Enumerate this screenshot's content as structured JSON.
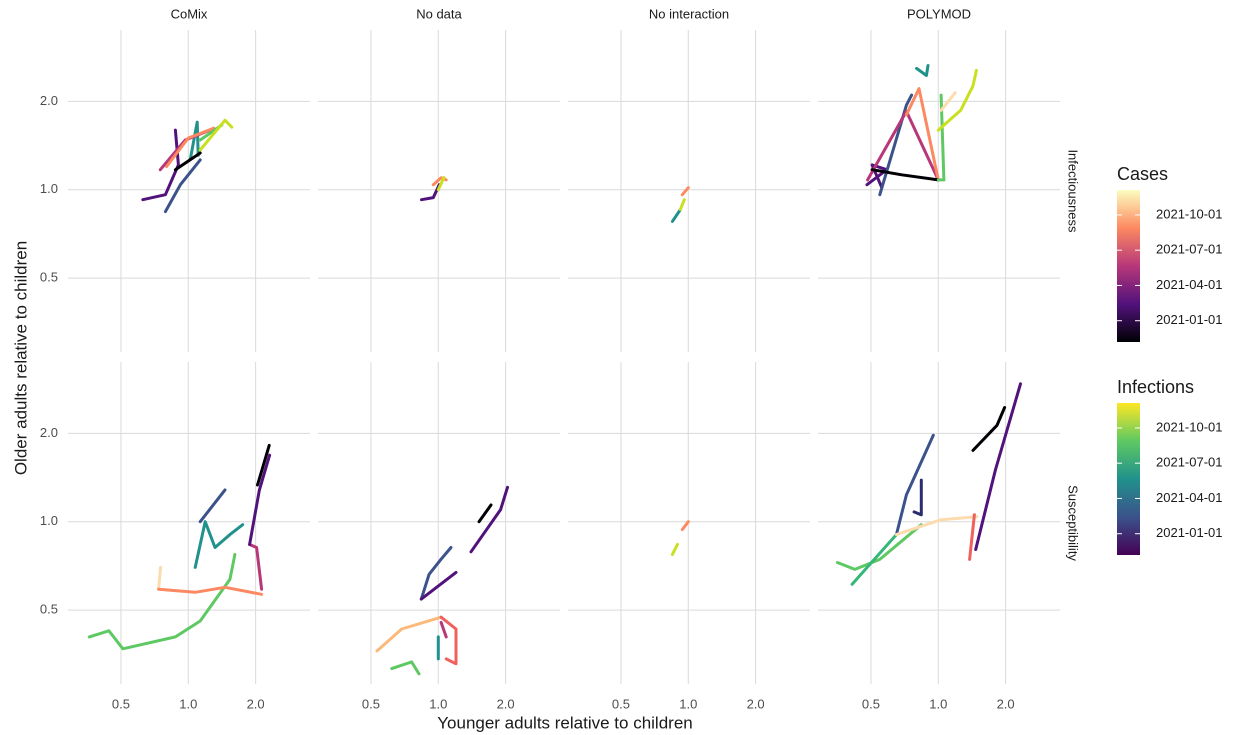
{
  "chart_data": {
    "type": "facet-line",
    "x_label": "Younger adults relative to children",
    "y_label": "Older adults relative to children",
    "log_scale": true,
    "grid": true,
    "xlim": [
      0.29,
      3.5
    ],
    "ylim": [
      0.28,
      3.5
    ],
    "xticks": [
      0.5,
      {
        "value": 1,
        "label": "1.0"
      },
      {
        "value": 2,
        "label": "2.0"
      }
    ],
    "yticks": [
      0.5,
      {
        "value": 1,
        "label": "1.0"
      },
      {
        "value": 2,
        "label": "2.0"
      }
    ],
    "columns": [
      "CoMix",
      "No data",
      "No interaction",
      "POLYMOD"
    ],
    "rows": [
      "Infectiousness",
      "Susceptibility"
    ],
    "panels": [
      [
        [
          {
            "color": "#51127c",
            "x": [
              0.626,
              0.79,
              0.903,
              0.876
            ],
            "y": [
              0.925,
              0.962,
              1.215,
              1.596
            ]
          },
          {
            "color": "#3b528b",
            "x": [
              0.79,
              0.922,
              1.13
            ],
            "y": [
              0.842,
              1.04,
              1.263
            ]
          },
          {
            "color": "#21918c",
            "x": [
              1.02,
              1.096,
              1.107
            ],
            "y": [
              1.263,
              1.7,
              1.31
            ]
          },
          {
            "color": "#b73779",
            "x": [
              0.75,
              0.97,
              1.25
            ],
            "y": [
              1.17,
              1.477,
              1.596
            ]
          },
          {
            "color": "#fc8961",
            "x": [
              0.8,
              1.0,
              1.3
            ],
            "y": [
              1.2,
              1.5,
              1.62
            ]
          },
          {
            "color": "#000004",
            "x": [
              0.876,
              1.13
            ],
            "y": [
              1.17,
              1.334
            ]
          },
          {
            "color": "#5ec962",
            "x": [
              1.13,
              1.41
            ],
            "y": [
              1.477,
              1.66
            ]
          },
          {
            "color": "#c8e020",
            "x": [
              1.13,
              1.46,
              1.565
            ],
            "y": [
              1.366,
              1.725,
              1.633
            ]
          }
        ],
        [
          {
            "color": "#51127c",
            "x": [
              0.841,
              0.95,
              1.01
            ],
            "y": [
              0.925,
              0.94,
              1.04
            ]
          },
          {
            "color": "#fc8961",
            "x": [
              0.95,
              1.03,
              1.085
            ],
            "y": [
              1.04,
              1.098,
              1.08
            ]
          },
          {
            "color": "#c8e020",
            "x": [
              1.0,
              1.06
            ],
            "y": [
              1.0,
              1.1
            ]
          }
        ],
        [
          {
            "color": "#21918c",
            "x": [
              0.849,
              0.922
            ],
            "y": [
              0.78,
              0.856
            ]
          },
          {
            "color": "#c8e020",
            "x": [
              0.922,
              0.96
            ],
            "y": [
              0.856,
              0.925
            ]
          },
          {
            "color": "#fc8961",
            "x": [
              0.94,
              1.0
            ],
            "y": [
              0.962,
              1.016
            ]
          }
        ],
        [
          {
            "color": "#51127c",
            "x": [
              0.48,
              0.589,
              0.506,
              0.559
            ],
            "y": [
              1.04,
              1.17,
              1.215,
              1.016
            ]
          },
          {
            "color": "#3b528b",
            "x": [
              0.548,
              0.72,
              0.76
            ],
            "y": [
              0.962,
              1.94,
              2.1
            ]
          },
          {
            "color": "#21918c",
            "x": [
              0.8,
              0.885,
              0.9
            ],
            "y": [
              2.59,
              2.45,
              2.65
            ]
          },
          {
            "color": "#b73779",
            "x": [
              0.483,
              0.72,
              1.0
            ],
            "y": [
              1.08,
              1.85,
              1.08
            ]
          },
          {
            "color": "#fc8961",
            "x": [
              0.72,
              0.82,
              1.0
            ],
            "y": [
              1.8,
              2.21,
              1.08
            ]
          },
          {
            "color": "#000004",
            "x": [
              0.506,
              0.686,
              1.0
            ],
            "y": [
              1.17,
              1.124,
              1.08
            ]
          },
          {
            "color": "#5ec962",
            "x": [
              1.03,
              1.06,
              1.0
            ],
            "y": [
              2.1,
              1.08,
              1.08
            ]
          },
          {
            "color": "#c8e020",
            "x": [
              1.0,
              1.26,
              1.43,
              1.48
            ],
            "y": [
              1.596,
              1.865,
              2.26,
              2.55
            ]
          },
          {
            "color": "#fcdcae",
            "x": [
              1.03,
              1.19
            ],
            "y": [
              1.865,
              2.14
            ]
          }
        ]
      ],
      [
        [
          {
            "color": "#5ec962",
            "x": [
              0.361,
              0.442,
              0.51,
              0.876,
              1.13,
              1.535,
              1.615
            ],
            "y": [
              0.405,
              0.425,
              0.369,
              0.405,
              0.459,
              0.636,
              0.773
            ]
          },
          {
            "color": "#21918c",
            "x": [
              1.074,
              1.19,
              1.316,
              1.535,
              1.75
            ],
            "y": [
              0.699,
              1.0,
              0.817,
              0.904,
              0.977
            ]
          },
          {
            "color": "#3b528b",
            "x": [
              1.13,
              1.46
            ],
            "y": [
              1.0,
              1.283
            ]
          },
          {
            "color": "#fcdcae",
            "x": [
              0.752,
              0.737
            ],
            "y": [
              0.699,
              0.589
            ]
          },
          {
            "color": "#fc8961",
            "x": [
              0.737,
              1.074,
              1.46,
              2.126
            ],
            "y": [
              0.589,
              0.575,
              0.598,
              0.566
            ]
          },
          {
            "color": "#b73779",
            "x": [
              1.88,
              2.02,
              2.126
            ],
            "y": [
              0.836,
              0.817,
              0.589
            ]
          },
          {
            "color": "#51127c",
            "x": [
              1.88,
              2.08,
              2.31
            ],
            "y": [
              0.836,
              1.283,
              1.685
            ]
          },
          {
            "color": "#000004",
            "x": [
              2.04,
              2.3
            ],
            "y": [
              1.334,
              1.82
            ]
          }
        ],
        [
          {
            "color": "#51127c",
            "x": [
              1.4,
              1.9,
              2.04
            ],
            "y": [
              0.79,
              1.1,
              1.31
            ]
          },
          {
            "color": "#000004",
            "x": [
              1.52,
              1.72
            ],
            "y": [
              1.0,
              1.14
            ]
          },
          {
            "color": "#3b528b",
            "x": [
              0.84,
              0.91,
              1.03,
              1.14
            ],
            "y": [
              0.545,
              0.662,
              0.745,
              0.817
            ]
          },
          {
            "color": "#51127c",
            "x": [
              0.84,
              1.2
            ],
            "y": [
              0.545,
              0.672
            ]
          },
          {
            "color": "#fcb97a",
            "x": [
              0.532,
              0.686,
              1.03
            ],
            "y": [
              0.363,
              0.431,
              0.473
            ]
          },
          {
            "color": "#f0605d",
            "x": [
              1.03,
              1.2,
              1.2,
              1.085
            ],
            "y": [
              0.473,
              0.431,
              0.328,
              0.341
            ]
          },
          {
            "color": "#b73779",
            "x": [
              1.03,
              1.085
            ],
            "y": [
              0.454,
              0.405
            ]
          },
          {
            "color": "#5ec962",
            "x": [
              0.62,
              0.76,
              0.82
            ],
            "y": [
              0.316,
              0.333,
              0.303
            ]
          },
          {
            "color": "#21918c",
            "x": [
              1.0,
              1.0
            ],
            "y": [
              0.341,
              0.405
            ]
          }
        ],
        [
          {
            "color": "#c8e020",
            "x": [
              0.849,
              0.894
            ],
            "y": [
              0.773,
              0.836
            ]
          },
          {
            "color": "#fc8961",
            "x": [
              0.94,
              1.0
            ],
            "y": [
              0.94,
              1.0
            ]
          }
        ],
        [
          {
            "color": "#5ec962",
            "x": [
              0.354,
              0.424,
              0.548,
              0.84
            ],
            "y": [
              0.726,
              0.688,
              0.744,
              0.977
            ]
          },
          {
            "color": "#35b779",
            "x": [
              0.412,
              0.65
            ],
            "y": [
              0.612,
              0.904
            ]
          },
          {
            "color": "#3b528b",
            "x": [
              0.65,
              0.72,
              0.95
            ],
            "y": [
              0.904,
              1.234,
              1.97
            ]
          },
          {
            "color": "#2c2d6e",
            "x": [
              0.84,
              0.84,
              0.78
            ],
            "y": [
              1.386,
              1.056,
              1.08
            ]
          },
          {
            "color": "#fcdcae",
            "x": [
              0.65,
              1.03,
              1.49
            ],
            "y": [
              0.904,
              1.016,
              1.04
            ]
          },
          {
            "color": "#f0605d",
            "x": [
              1.45,
              1.38
            ],
            "y": [
              1.056,
              0.744
            ]
          },
          {
            "color": "#51127c",
            "x": [
              1.47,
              1.8,
              2.33
            ],
            "y": [
              0.804,
              1.5,
              2.95
            ]
          },
          {
            "color": "#000004",
            "x": [
              1.43,
              1.83,
              1.98
            ],
            "y": [
              1.75,
              2.13,
              2.45
            ]
          }
        ]
      ]
    ],
    "legends": [
      {
        "title": "Cases",
        "colors": [
          "#000004",
          "#51127c",
          "#b73779",
          "#fc8961",
          "#fcfdbf"
        ],
        "ticks": [
          "2021-01-01",
          "2021-04-01",
          "2021-07-01",
          "2021-10-01"
        ]
      },
      {
        "title": "Infections",
        "colors": [
          "#440154",
          "#3b528b",
          "#21918c",
          "#5ec962",
          "#fde725"
        ],
        "ticks": [
          "2021-01-01",
          "2021-04-01",
          "2021-07-01",
          "2021-10-01"
        ]
      }
    ]
  }
}
